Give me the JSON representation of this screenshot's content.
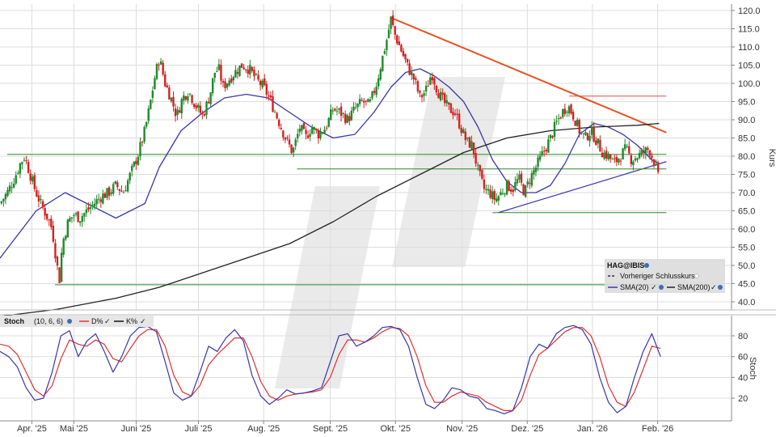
{
  "chart_data": [
    {
      "type": "candlestick",
      "panel": "price",
      "ylabel": "Kurs",
      "ylim": [
        37,
        122
      ],
      "yticks": [
        "120.0",
        "115.0",
        "110.0",
        "105.0",
        "100.0",
        "95.0",
        "90.0",
        "85.0",
        "80.0",
        "75.0",
        "70.0",
        "65.0",
        "60.0",
        "55.0",
        "50.0",
        "45.0",
        "40.0"
      ],
      "ytick_values": [
        120,
        115,
        110,
        105,
        100,
        95,
        90,
        85,
        80,
        75,
        70,
        65,
        60,
        55,
        50,
        45,
        40
      ],
      "x_months": [
        "Apr. '25",
        "Mai '25",
        "Juni '25",
        "Juli '25",
        "Aug. '25",
        "Sept. '25",
        "Okt. '25",
        "Nov. '25",
        "Dez. '25",
        "Jan. '26",
        "Feb. '26"
      ],
      "x_month_start_day": [
        22,
        51,
        94,
        137,
        182,
        228,
        273,
        319,
        364,
        409,
        454
      ],
      "x_range_days": [
        0,
        505
      ],
      "close_path": [
        [
          0,
          67
        ],
        [
          5,
          70
        ],
        [
          10,
          74
        ],
        [
          14,
          78
        ],
        [
          17,
          80
        ],
        [
          20,
          76
        ],
        [
          24,
          71
        ],
        [
          28,
          67
        ],
        [
          33,
          63
        ],
        [
          36,
          60
        ],
        [
          39,
          51
        ],
        [
          41,
          46
        ],
        [
          43,
          56
        ],
        [
          47,
          62
        ],
        [
          51,
          64
        ],
        [
          55,
          63
        ],
        [
          60,
          65
        ],
        [
          65,
          67
        ],
        [
          70,
          69
        ],
        [
          75,
          70
        ],
        [
          80,
          72
        ],
        [
          85,
          70
        ],
        [
          90,
          75
        ],
        [
          95,
          80
        ],
        [
          100,
          87
        ],
        [
          103,
          93
        ],
        [
          107,
          102
        ],
        [
          110,
          107
        ],
        [
          114,
          100
        ],
        [
          118,
          96
        ],
        [
          122,
          91
        ],
        [
          126,
          96
        ],
        [
          130,
          98
        ],
        [
          135,
          94
        ],
        [
          140,
          91
        ],
        [
          145,
          97
        ],
        [
          148,
          103
        ],
        [
          151,
          104
        ],
        [
          154,
          99
        ],
        [
          158,
          101
        ],
        [
          162,
          103
        ],
        [
          167,
          105
        ],
        [
          172,
          104
        ],
        [
          177,
          101
        ],
        [
          182,
          99
        ],
        [
          187,
          95
        ],
        [
          192,
          90
        ],
        [
          197,
          85
        ],
        [
          202,
          81
        ],
        [
          207,
          88
        ],
        [
          211,
          85
        ],
        [
          215,
          88
        ],
        [
          220,
          86
        ],
        [
          225,
          88
        ],
        [
          230,
          93
        ],
        [
          235,
          92
        ],
        [
          240,
          90
        ],
        [
          245,
          93
        ],
        [
          250,
          95
        ],
        [
          255,
          94
        ],
        [
          260,
          100
        ],
        [
          264,
          107
        ],
        [
          267,
          112
        ],
        [
          270,
          118
        ],
        [
          272,
          114
        ],
        [
          275,
          111
        ],
        [
          278,
          108
        ],
        [
          282,
          104
        ],
        [
          286,
          101
        ],
        [
          290,
          96
        ],
        [
          294,
          98
        ],
        [
          298,
          103
        ],
        [
          302,
          98
        ],
        [
          306,
          95
        ],
        [
          310,
          93
        ],
        [
          314,
          92
        ],
        [
          318,
          88
        ],
        [
          322,
          84
        ],
        [
          326,
          83
        ],
        [
          330,
          76
        ],
        [
          334,
          71
        ],
        [
          338,
          70
        ],
        [
          342,
          68
        ],
        [
          346,
          70
        ],
        [
          350,
          72
        ],
        [
          354,
          71
        ],
        [
          358,
          74
        ],
        [
          362,
          70
        ],
        [
          366,
          74
        ],
        [
          370,
          77
        ],
        [
          375,
          81
        ],
        [
          380,
          85
        ],
        [
          384,
          89
        ],
        [
          388,
          92
        ],
        [
          392,
          94
        ],
        [
          396,
          91
        ],
        [
          400,
          87
        ],
        [
          404,
          85
        ],
        [
          408,
          87
        ],
        [
          412,
          84
        ],
        [
          416,
          81
        ],
        [
          420,
          80
        ],
        [
          424,
          78
        ],
        [
          428,
          80
        ],
        [
          432,
          82
        ],
        [
          436,
          79
        ],
        [
          440,
          80
        ],
        [
          444,
          81
        ],
        [
          448,
          82
        ],
        [
          452,
          78
        ],
        [
          455,
          73
        ]
      ],
      "series": [
        {
          "name": "SMA(20)",
          "color": "#3a36a8",
          "x": [
            0,
            25,
            45,
            60,
            80,
            100,
            110,
            125,
            140,
            155,
            170,
            185,
            200,
            215,
            230,
            245,
            258,
            270,
            280,
            290,
            300,
            310,
            320,
            330,
            340,
            350,
            360,
            370,
            380,
            390,
            400,
            410,
            420,
            430,
            440,
            450,
            455
          ],
          "values": [
            52,
            65,
            70,
            67,
            63,
            67,
            77,
            87,
            92,
            96,
            97,
            96,
            92,
            88,
            85,
            86,
            92,
            99,
            103,
            104,
            102,
            99,
            95,
            88,
            79,
            73,
            70,
            70,
            72,
            78,
            86,
            89,
            88,
            86,
            83,
            79,
            78
          ]
        },
        {
          "name": "SMA(200)",
          "color": "#222222",
          "x": [
            0,
            40,
            80,
            110,
            140,
            170,
            200,
            230,
            260,
            290,
            320,
            350,
            380,
            410,
            440,
            455
          ],
          "values": [
            36,
            38,
            41,
            44,
            48,
            52,
            56,
            62,
            69,
            75,
            81,
            85,
            87,
            88,
            88.5,
            89
          ]
        }
      ],
      "annotations": [
        {
          "kind": "line",
          "color": "#e8501e",
          "from": [
            270,
            118
          ],
          "to": [
            460,
            86.5
          ]
        },
        {
          "kind": "line",
          "color": "#3a36a8",
          "from": [
            344,
            64.5
          ],
          "to": [
            460,
            78.5
          ]
        },
        {
          "kind": "hline",
          "color": "#2c8a2c",
          "y": 80.5,
          "from": 5,
          "to": 460
        },
        {
          "kind": "hline",
          "color": "#2c8a2c",
          "y": 76.5,
          "from": 205,
          "to": 460
        },
        {
          "kind": "hline",
          "color": "#2c8a2c",
          "y": 64.5,
          "from": 340,
          "to": 460
        },
        {
          "kind": "hline",
          "color": "#2c8a2c",
          "y": 44.7,
          "from": 38,
          "to": 460
        },
        {
          "kind": "hline",
          "color": "#e04848",
          "y": 96.5,
          "from": 393,
          "to": 460
        }
      ],
      "legend": {
        "placement": "bottom-right",
        "title": "HAG@IBIS",
        "entries": [
          "Vorheriger Schlusskurs",
          "SMA(20)",
          "SMA(200)"
        ]
      }
    },
    {
      "type": "line",
      "panel": "stochastic",
      "title": "Stoch",
      "params": "(10, 6, 6)",
      "ylabel": "Stoch",
      "ylim": [
        2,
        98
      ],
      "yticks": [
        "80",
        "60",
        "40",
        "20"
      ],
      "ytick_values": [
        80,
        60,
        40,
        20
      ],
      "series": [
        {
          "name": "K%",
          "color": "#3a36a8",
          "x": [
            0,
            6,
            12,
            18,
            24,
            30,
            36,
            42,
            48,
            54,
            60,
            66,
            72,
            78,
            84,
            90,
            96,
            102,
            108,
            114,
            120,
            126,
            132,
            138,
            144,
            150,
            156,
            162,
            168,
            174,
            180,
            186,
            192,
            198,
            204,
            210,
            216,
            222,
            228,
            234,
            240,
            246,
            252,
            258,
            264,
            270,
            276,
            282,
            288,
            294,
            300,
            306,
            312,
            318,
            324,
            330,
            336,
            342,
            348,
            354,
            360,
            366,
            372,
            378,
            384,
            390,
            396,
            402,
            408,
            414,
            420,
            426,
            432,
            438,
            444,
            450,
            456
          ],
          "values": [
            65,
            60,
            50,
            30,
            18,
            20,
            45,
            80,
            85,
            60,
            75,
            82,
            65,
            45,
            60,
            80,
            88,
            89,
            84,
            55,
            25,
            18,
            22,
            45,
            70,
            65,
            78,
            86,
            75,
            42,
            22,
            14,
            20,
            28,
            24,
            25,
            27,
            30,
            55,
            80,
            82,
            70,
            74,
            80,
            88,
            89,
            86,
            70,
            40,
            14,
            10,
            18,
            30,
            28,
            22,
            20,
            10,
            8,
            5,
            8,
            30,
            60,
            72,
            68,
            82,
            88,
            90,
            86,
            72,
            40,
            16,
            6,
            12,
            40,
            65,
            82,
            60
          ]
        },
        {
          "name": "D%",
          "color": "#e03030",
          "x": [
            0,
            6,
            12,
            18,
            24,
            30,
            36,
            42,
            48,
            54,
            60,
            66,
            72,
            78,
            84,
            90,
            96,
            102,
            108,
            114,
            120,
            126,
            132,
            138,
            144,
            150,
            156,
            162,
            168,
            174,
            180,
            186,
            192,
            198,
            204,
            210,
            216,
            222,
            228,
            234,
            240,
            246,
            252,
            258,
            264,
            270,
            276,
            282,
            288,
            294,
            300,
            306,
            312,
            318,
            324,
            330,
            336,
            342,
            348,
            354,
            360,
            366,
            372,
            378,
            384,
            390,
            396,
            402,
            408,
            414,
            420,
            426,
            432,
            438,
            444,
            450,
            456
          ],
          "values": [
            72,
            70,
            62,
            45,
            28,
            22,
            32,
            58,
            76,
            72,
            70,
            76,
            72,
            58,
            55,
            68,
            80,
            86,
            86,
            70,
            42,
            26,
            22,
            32,
            52,
            62,
            70,
            78,
            78,
            60,
            36,
            22,
            18,
            22,
            24,
            25,
            26,
            28,
            40,
            62,
            76,
            76,
            74,
            78,
            84,
            88,
            87,
            80,
            60,
            32,
            16,
            16,
            22,
            26,
            24,
            22,
            16,
            12,
            8,
            8,
            18,
            42,
            62,
            68,
            76,
            84,
            88,
            88,
            80,
            60,
            32,
            16,
            12,
            26,
            48,
            70,
            68
          ]
        }
      ],
      "legend": {
        "placement": "top-left",
        "entries": [
          "D%",
          "K%"
        ]
      }
    }
  ],
  "colors": {
    "up": "#1f8a2a",
    "down": "#d42020",
    "grid": "#dddddd",
    "watermark": "#eaeaea"
  }
}
